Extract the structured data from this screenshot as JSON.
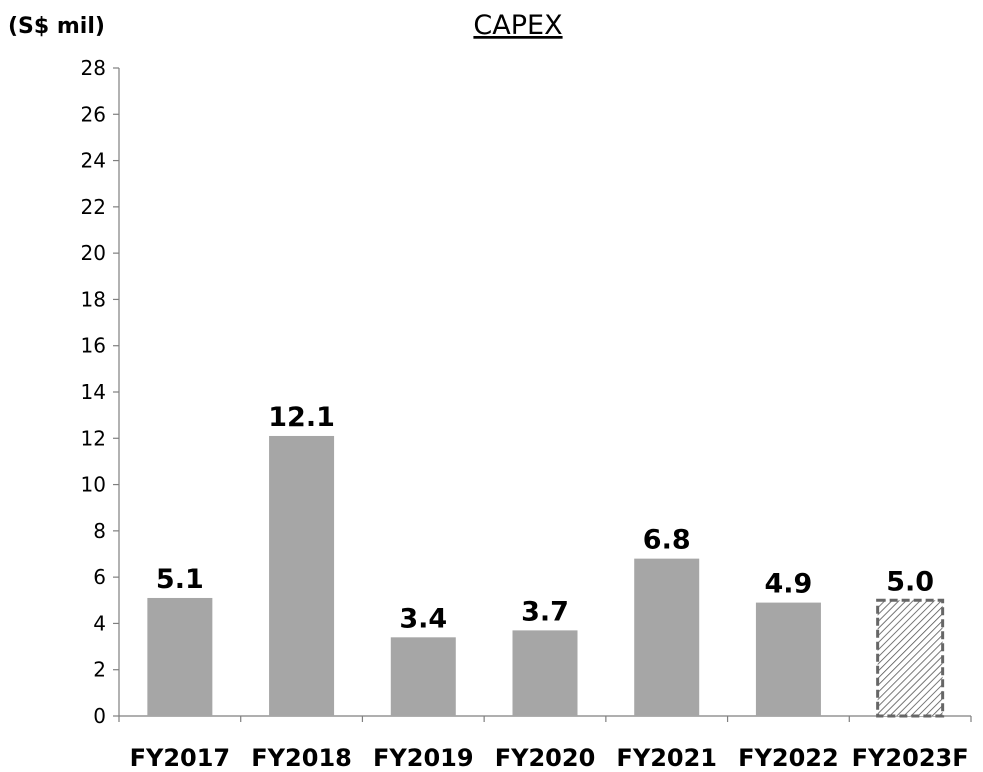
{
  "chart_data": {
    "type": "bar",
    "title": "CAPEX",
    "ylabel": "(S$ mil)",
    "xlabel": "",
    "ylim": [
      0,
      28
    ],
    "yticks": [
      0,
      2,
      4,
      6,
      8,
      10,
      12,
      14,
      16,
      18,
      20,
      22,
      24,
      26,
      28
    ],
    "categories": [
      "FY2017",
      "FY2018",
      "FY2019",
      "FY2020",
      "FY2021",
      "FY2022",
      "FY2023F"
    ],
    "values": [
      5.1,
      12.1,
      3.4,
      3.7,
      6.8,
      4.9,
      5.0
    ],
    "data_labels": [
      "5.1",
      "12.1",
      "3.4",
      "3.7",
      "6.8",
      "4.9",
      "5.0"
    ],
    "forecast": [
      false,
      false,
      false,
      false,
      false,
      false,
      true
    ],
    "bar_color": "#a6a6a6",
    "forecast_style": "hatched with dashed outline",
    "grid": false,
    "legend": "none"
  }
}
